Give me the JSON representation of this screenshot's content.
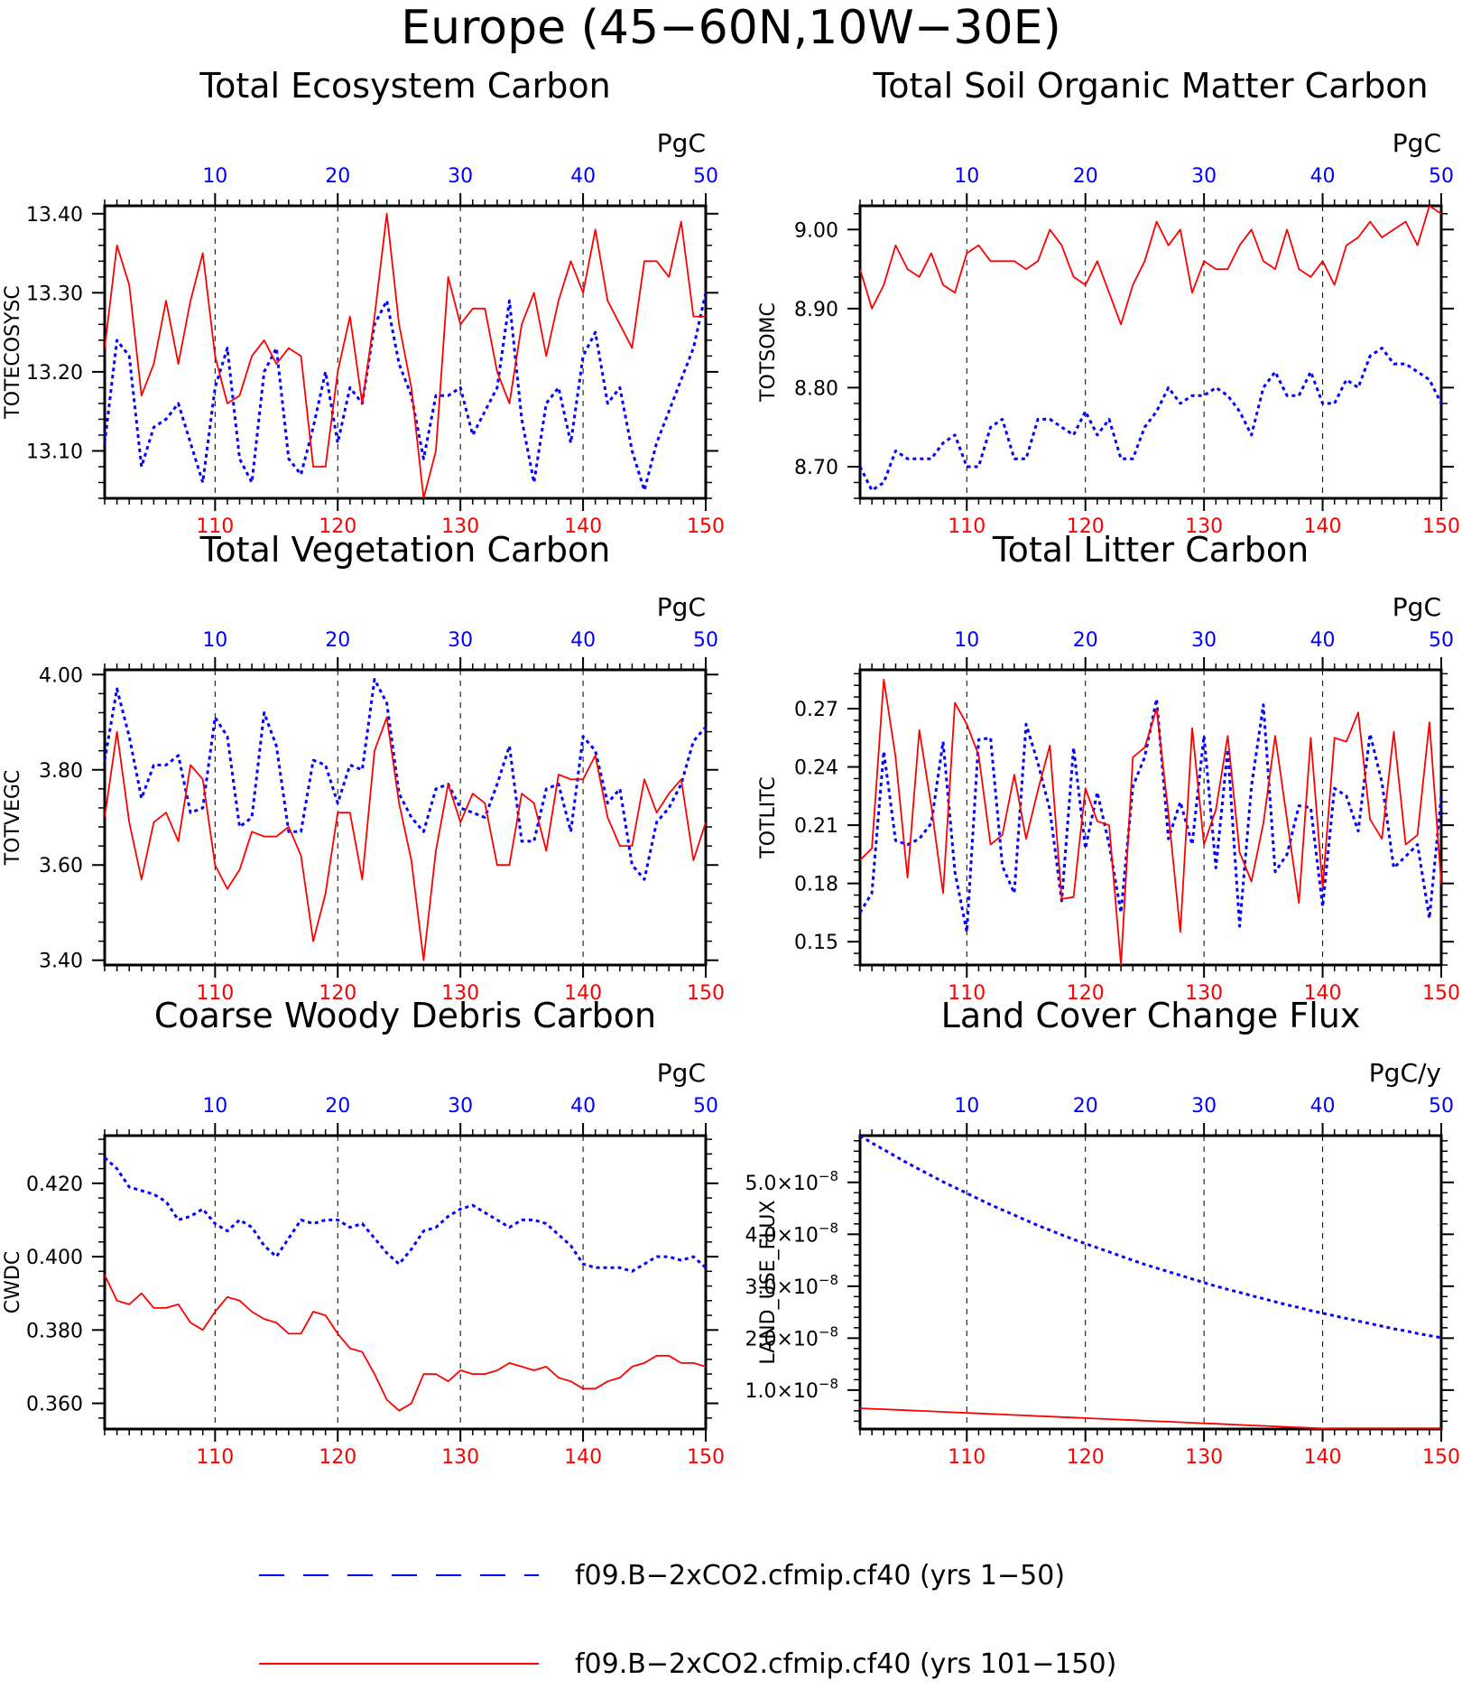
{
  "figure_title": "Europe (45−60N,10W−30E)",
  "colors": {
    "blue": "#0000ff",
    "red": "#ff0000",
    "axis": "#000000"
  },
  "legend": [
    {
      "label": "f09.B−2xCO2.cfmip.cf40 (yrs 1−50)",
      "color": "#0000ff",
      "style": "dashed"
    },
    {
      "label": "f09.B−2xCO2.cfmip.cf40 (yrs 101−150)",
      "color": "#ff0000",
      "style": "solid"
    }
  ],
  "chart_data": [
    {
      "type": "line",
      "title": "Total Ecosystem Carbon",
      "ylabel": "TOTECOSYSC",
      "units": "PgC",
      "ylim": [
        13.04,
        13.41
      ],
      "yticks": [
        13.1,
        13.2,
        13.3,
        13.4
      ],
      "yticklabels": [
        "13.10",
        "13.20",
        "13.30",
        "13.40"
      ],
      "bottom_axis": {
        "range": [
          101,
          150
        ],
        "ticks": [
          110,
          120,
          130,
          140,
          150
        ]
      },
      "top_axis": {
        "range": [
          1,
          50
        ],
        "ticks": [
          10,
          20,
          30,
          40,
          50
        ]
      },
      "series": [
        {
          "color": "#0000ff",
          "style": "dashed",
          "axis": "top",
          "x_start": 1,
          "values": [
            13.11,
            13.24,
            13.22,
            13.08,
            13.13,
            13.14,
            13.16,
            13.11,
            13.06,
            13.18,
            13.23,
            13.09,
            13.06,
            13.2,
            13.23,
            13.09,
            13.07,
            13.13,
            13.2,
            13.11,
            13.18,
            13.16,
            13.26,
            13.29,
            13.21,
            13.17,
            13.09,
            13.17,
            13.17,
            13.18,
            13.12,
            13.15,
            13.18,
            13.29,
            13.14,
            13.06,
            13.16,
            13.18,
            13.11,
            13.22,
            13.25,
            13.16,
            13.18,
            13.1,
            13.05,
            13.11,
            13.15,
            13.19,
            13.23,
            13.3
          ]
        },
        {
          "color": "#ff0000",
          "style": "solid",
          "axis": "bottom",
          "x_start": 101,
          "values": [
            13.23,
            13.36,
            13.31,
            13.17,
            13.21,
            13.29,
            13.21,
            13.29,
            13.35,
            13.22,
            13.16,
            13.17,
            13.22,
            13.24,
            13.21,
            13.23,
            13.22,
            13.08,
            13.08,
            13.2,
            13.27,
            13.16,
            13.27,
            13.4,
            13.26,
            13.18,
            13.04,
            13.1,
            13.32,
            13.26,
            13.28,
            13.28,
            13.2,
            13.16,
            13.26,
            13.3,
            13.22,
            13.29,
            13.34,
            13.3,
            13.38,
            13.29,
            13.26,
            13.23,
            13.34,
            13.34,
            13.32,
            13.39,
            13.27,
            13.27
          ]
        }
      ]
    },
    {
      "type": "line",
      "title": "Total Soil Organic Matter Carbon",
      "ylabel": "TOTSOMC",
      "units": "PgC",
      "ylim": [
        8.66,
        9.03
      ],
      "yticks": [
        8.7,
        8.8,
        8.9,
        9.0
      ],
      "yticklabels": [
        "8.70",
        "8.80",
        "8.90",
        "9.00"
      ],
      "bottom_axis": {
        "range": [
          101,
          150
        ],
        "ticks": [
          110,
          120,
          130,
          140,
          150
        ]
      },
      "top_axis": {
        "range": [
          1,
          50
        ],
        "ticks": [
          10,
          20,
          30,
          40,
          50
        ]
      },
      "series": [
        {
          "color": "#0000ff",
          "style": "dashed",
          "axis": "top",
          "x_start": 1,
          "values": [
            8.7,
            8.67,
            8.68,
            8.72,
            8.71,
            8.71,
            8.71,
            8.73,
            8.74,
            8.7,
            8.7,
            8.75,
            8.76,
            8.71,
            8.71,
            8.76,
            8.76,
            8.75,
            8.74,
            8.77,
            8.74,
            8.76,
            8.71,
            8.71,
            8.75,
            8.77,
            8.8,
            8.78,
            8.79,
            8.79,
            8.8,
            8.79,
            8.77,
            8.74,
            8.8,
            8.82,
            8.79,
            8.79,
            8.82,
            8.78,
            8.78,
            8.81,
            8.8,
            8.84,
            8.85,
            8.83,
            8.83,
            8.82,
            8.81,
            8.78
          ]
        },
        {
          "color": "#ff0000",
          "style": "solid",
          "axis": "bottom",
          "x_start": 101,
          "values": [
            8.95,
            8.9,
            8.93,
            8.98,
            8.95,
            8.94,
            8.97,
            8.93,
            8.92,
            8.97,
            8.98,
            8.96,
            8.96,
            8.96,
            8.95,
            8.96,
            9.0,
            8.98,
            8.94,
            8.93,
            8.96,
            8.92,
            8.88,
            8.93,
            8.96,
            9.01,
            8.98,
            9.0,
            8.92,
            8.96,
            8.95,
            8.95,
            8.98,
            9.0,
            8.96,
            8.95,
            9.0,
            8.95,
            8.94,
            8.96,
            8.93,
            8.98,
            8.99,
            9.01,
            8.99,
            9.0,
            9.01,
            8.98,
            9.03,
            9.02
          ]
        }
      ]
    },
    {
      "type": "line",
      "title": "Total Vegetation Carbon",
      "ylabel": "TOTVEGC",
      "units": "PgC",
      "ylim": [
        3.39,
        4.01
      ],
      "yticks": [
        3.4,
        3.6,
        3.8,
        4.0
      ],
      "yticklabels": [
        "3.40",
        "3.60",
        "3.80",
        "4.00"
      ],
      "bottom_axis": {
        "range": [
          101,
          150
        ],
        "ticks": [
          110,
          120,
          130,
          140,
          150
        ]
      },
      "top_axis": {
        "range": [
          1,
          50
        ],
        "ticks": [
          10,
          20,
          30,
          40,
          50
        ]
      },
      "series": [
        {
          "color": "#0000ff",
          "style": "dashed",
          "axis": "top",
          "x_start": 1,
          "values": [
            3.82,
            3.97,
            3.87,
            3.74,
            3.81,
            3.81,
            3.83,
            3.71,
            3.72,
            3.91,
            3.87,
            3.68,
            3.7,
            3.92,
            3.85,
            3.67,
            3.67,
            3.82,
            3.81,
            3.73,
            3.81,
            3.8,
            3.99,
            3.94,
            3.75,
            3.7,
            3.67,
            3.76,
            3.77,
            3.72,
            3.71,
            3.7,
            3.77,
            3.85,
            3.65,
            3.65,
            3.76,
            3.77,
            3.67,
            3.87,
            3.84,
            3.73,
            3.76,
            3.6,
            3.57,
            3.69,
            3.72,
            3.77,
            3.86,
            3.89
          ]
        },
        {
          "color": "#ff0000",
          "style": "solid",
          "axis": "bottom",
          "x_start": 101,
          "values": [
            3.7,
            3.88,
            3.69,
            3.57,
            3.69,
            3.71,
            3.65,
            3.81,
            3.78,
            3.6,
            3.55,
            3.59,
            3.67,
            3.66,
            3.66,
            3.68,
            3.62,
            3.44,
            3.54,
            3.71,
            3.71,
            3.57,
            3.84,
            3.91,
            3.73,
            3.61,
            3.4,
            3.63,
            3.77,
            3.69,
            3.75,
            3.73,
            3.6,
            3.6,
            3.75,
            3.73,
            3.63,
            3.79,
            3.78,
            3.78,
            3.83,
            3.7,
            3.64,
            3.64,
            3.78,
            3.71,
            3.75,
            3.78,
            3.61,
            3.69
          ]
        }
      ]
    },
    {
      "type": "line",
      "title": "Total Litter Carbon",
      "ylabel": "TOTLITC",
      "units": "PgC",
      "ylim": [
        0.138,
        0.29
      ],
      "yticks": [
        0.15,
        0.18,
        0.21,
        0.24,
        0.27
      ],
      "yticklabels": [
        "0.15",
        "0.18",
        "0.21",
        "0.24",
        "0.27"
      ],
      "bottom_axis": {
        "range": [
          101,
          150
        ],
        "ticks": [
          110,
          120,
          130,
          140,
          150
        ]
      },
      "top_axis": {
        "range": [
          1,
          50
        ],
        "ticks": [
          10,
          20,
          30,
          40,
          50
        ]
      },
      "series": [
        {
          "color": "#0000ff",
          "style": "dashed",
          "axis": "top",
          "x_start": 1,
          "values": [
            0.165,
            0.175,
            0.248,
            0.202,
            0.2,
            0.203,
            0.211,
            0.253,
            0.186,
            0.155,
            0.254,
            0.255,
            0.189,
            0.175,
            0.262,
            0.242,
            0.218,
            0.171,
            0.25,
            0.198,
            0.227,
            0.2,
            0.165,
            0.23,
            0.245,
            0.275,
            0.203,
            0.222,
            0.2,
            0.256,
            0.188,
            0.249,
            0.158,
            0.23,
            0.272,
            0.186,
            0.195,
            0.22,
            0.219,
            0.168,
            0.229,
            0.225,
            0.207,
            0.257,
            0.232,
            0.188,
            0.194,
            0.2,
            0.162,
            0.225
          ]
        },
        {
          "color": "#ff0000",
          "style": "solid",
          "axis": "bottom",
          "x_start": 101,
          "values": [
            0.192,
            0.198,
            0.285,
            0.245,
            0.183,
            0.259,
            0.22,
            0.175,
            0.273,
            0.262,
            0.246,
            0.2,
            0.205,
            0.236,
            0.203,
            0.228,
            0.251,
            0.172,
            0.173,
            0.229,
            0.212,
            0.21,
            0.138,
            0.245,
            0.25,
            0.27,
            0.216,
            0.155,
            0.26,
            0.2,
            0.218,
            0.256,
            0.196,
            0.181,
            0.211,
            0.256,
            0.213,
            0.17,
            0.255,
            0.178,
            0.255,
            0.253,
            0.268,
            0.213,
            0.203,
            0.258,
            0.2,
            0.205,
            0.263,
            0.18
          ]
        }
      ]
    },
    {
      "type": "line",
      "title": "Coarse Woody Debris Carbon",
      "ylabel": "CWDC",
      "units": "PgC",
      "ylim": [
        0.353,
        0.433
      ],
      "yticks": [
        0.36,
        0.38,
        0.4,
        0.42
      ],
      "yticklabels": [
        "0.360",
        "0.380",
        "0.400",
        "0.420"
      ],
      "bottom_axis": {
        "range": [
          101,
          150
        ],
        "ticks": [
          110,
          120,
          130,
          140,
          150
        ]
      },
      "top_axis": {
        "range": [
          1,
          50
        ],
        "ticks": [
          10,
          20,
          30,
          40,
          50
        ]
      },
      "series": [
        {
          "color": "#0000ff",
          "style": "dashed",
          "axis": "top",
          "x_start": 1,
          "values": [
            0.427,
            0.424,
            0.419,
            0.418,
            0.417,
            0.415,
            0.41,
            0.411,
            0.413,
            0.409,
            0.407,
            0.41,
            0.408,
            0.403,
            0.4,
            0.405,
            0.41,
            0.409,
            0.41,
            0.41,
            0.408,
            0.409,
            0.405,
            0.401,
            0.398,
            0.402,
            0.407,
            0.408,
            0.411,
            0.413,
            0.414,
            0.412,
            0.41,
            0.408,
            0.41,
            0.41,
            0.409,
            0.406,
            0.403,
            0.398,
            0.397,
            0.397,
            0.397,
            0.396,
            0.398,
            0.4,
            0.4,
            0.399,
            0.4,
            0.397
          ]
        },
        {
          "color": "#ff0000",
          "style": "solid",
          "axis": "bottom",
          "x_start": 101,
          "values": [
            0.395,
            0.388,
            0.387,
            0.39,
            0.386,
            0.386,
            0.387,
            0.382,
            0.38,
            0.385,
            0.389,
            0.388,
            0.385,
            0.383,
            0.382,
            0.379,
            0.379,
            0.385,
            0.384,
            0.379,
            0.375,
            0.374,
            0.368,
            0.361,
            0.358,
            0.36,
            0.368,
            0.368,
            0.366,
            0.369,
            0.368,
            0.368,
            0.369,
            0.371,
            0.37,
            0.369,
            0.37,
            0.367,
            0.366,
            0.364,
            0.364,
            0.366,
            0.367,
            0.37,
            0.371,
            0.373,
            0.373,
            0.371,
            0.371,
            0.37
          ]
        }
      ]
    },
    {
      "type": "line",
      "title": "Land Cover Change Flux",
      "ylabel": "LAND_USE_FLUX",
      "units": "PgC/y",
      "ylim": [
        0.25,
        5.9
      ],
      "yticks": [
        1,
        2,
        3,
        4,
        5
      ],
      "yticklabels": [
        "1.0x10^-8",
        "2.0x10^-8",
        "3.0x10^-8",
        "4.0x10^-8",
        "5.0x10^-8"
      ],
      "bottom_axis": {
        "range": [
          101,
          150
        ],
        "ticks": [
          110,
          120,
          130,
          140,
          150
        ]
      },
      "top_axis": {
        "range": [
          1,
          50
        ],
        "ticks": [
          10,
          20,
          30,
          40,
          50
        ]
      },
      "series": [
        {
          "color": "#0000ff",
          "style": "dashed",
          "axis": "top",
          "x_start": 1,
          "values": [
            5.9,
            5.76,
            5.63,
            5.5,
            5.37,
            5.25,
            5.13,
            5.01,
            4.9,
            4.79,
            4.68,
            4.57,
            4.47,
            4.37,
            4.27,
            4.17,
            4.08,
            3.99,
            3.9,
            3.82,
            3.74,
            3.66,
            3.58,
            3.5,
            3.42,
            3.35,
            3.28,
            3.21,
            3.14,
            3.07,
            3.0,
            2.94,
            2.88,
            2.82,
            2.76,
            2.7,
            2.64,
            2.59,
            2.53,
            2.48,
            2.43,
            2.38,
            2.33,
            2.28,
            2.23,
            2.18,
            2.14,
            2.09,
            2.05,
            2.01
          ]
        },
        {
          "color": "#ff0000",
          "style": "solid",
          "axis": "bottom",
          "x_start": 101,
          "values": [
            0.65,
            0.64,
            0.63,
            0.62,
            0.61,
            0.6,
            0.59,
            0.58,
            0.57,
            0.56,
            0.55,
            0.54,
            0.53,
            0.52,
            0.51,
            0.5,
            0.49,
            0.48,
            0.47,
            0.46,
            0.45,
            0.44,
            0.43,
            0.42,
            0.41,
            0.4,
            0.39,
            0.38,
            0.37,
            0.36,
            0.35,
            0.34,
            0.33,
            0.32,
            0.31,
            0.3,
            0.29,
            0.28,
            0.27,
            0.26,
            0.25,
            0.25,
            0.25,
            0.25,
            0.25,
            0.25,
            0.25,
            0.25,
            0.25,
            0.25
          ]
        }
      ]
    }
  ]
}
